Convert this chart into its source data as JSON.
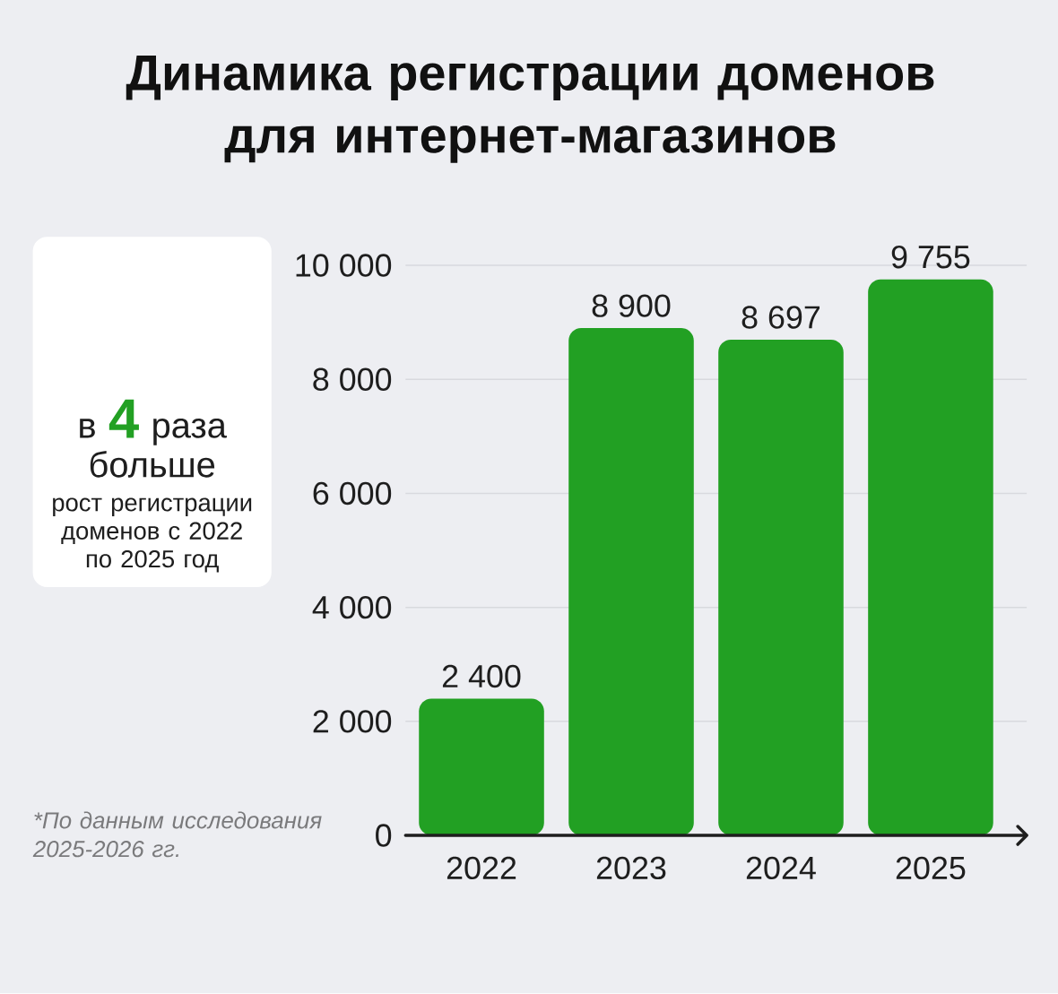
{
  "chart_data": [
    {
      "type": "bar",
      "title": "Динамика регистрации доменов для интернет-магазинов",
      "categories": [
        "2022",
        "2023",
        "2024",
        "2025"
      ],
      "values": [
        2400,
        8900,
        8697,
        9755
      ],
      "value_labels": [
        "2 400",
        "8 900",
        "8 697",
        "9 755"
      ],
      "color": "#22a023",
      "ylim": [
        0,
        10000
      ],
      "yticks": [
        0,
        {
          "value": 2000,
          "label": "2 000"
        },
        {
          "value": 4000,
          "label": "4 000"
        },
        {
          "value": 6000,
          "label": "6 000"
        },
        {
          "value": 8000,
          "label": "8 000"
        },
        {
          "value": 10000,
          "label": "10 000"
        }
      ],
      "grid": "y",
      "annotations": [
        "*По данным исследования 2025-2026 гг."
      ]
    },
    {
      "type": "other",
      "annotations": [
        "в **4** раза больше",
        "рост регистрации доменов с 2022 по 2025 год"
      ]
    }
  ]
}
